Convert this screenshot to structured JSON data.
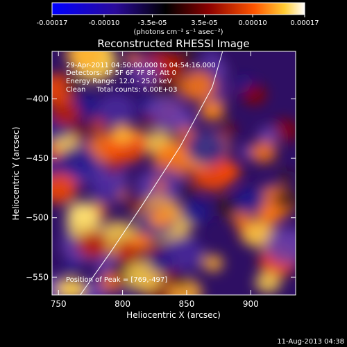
{
  "colorbar": {
    "tick_labels": [
      "-0.00017",
      "-0.00010",
      "-3.5e-05",
      "3.5e-05",
      "0.00010",
      "0.00017"
    ],
    "unit_label": "(photons cm⁻² s⁻¹ asec⁻²)",
    "range": [
      -0.00017,
      0.00017
    ]
  },
  "chart_data": {
    "type": "heatmap",
    "title": "Reconstructed RHESSI Image",
    "xlabel": "Heliocentric X (arcsec)",
    "ylabel": "Heliocentric Y (arcsec)",
    "xlim": [
      745,
      935
    ],
    "ylim": [
      -565,
      -360
    ],
    "x_ticks": [
      750,
      800,
      850,
      900
    ],
    "y_ticks": [
      -400,
      -450,
      -500,
      -550
    ],
    "limb_curve": [
      [
        767,
        -565
      ],
      [
        790,
        -530
      ],
      [
        815,
        -490
      ],
      [
        845,
        -440
      ],
      [
        870,
        -390
      ],
      [
        878,
        -360
      ]
    ],
    "peak": [
      769,
      -497
    ]
  },
  "annotations": {
    "time_range": "29-Apr-2011 04:50:00.000 to 04:54:16.000",
    "detectors": "Detectors: 4F 5F 6F 7F 8F, Att 0",
    "energy": "Energy Range: 12.0 - 25.0 keV",
    "method_counts": "Clean     Total counts: 6.00E+03",
    "peak_position": "Position of Peak = [769,-497]"
  },
  "footer": {
    "timestamp": "11-Aug-2013 04:38"
  }
}
